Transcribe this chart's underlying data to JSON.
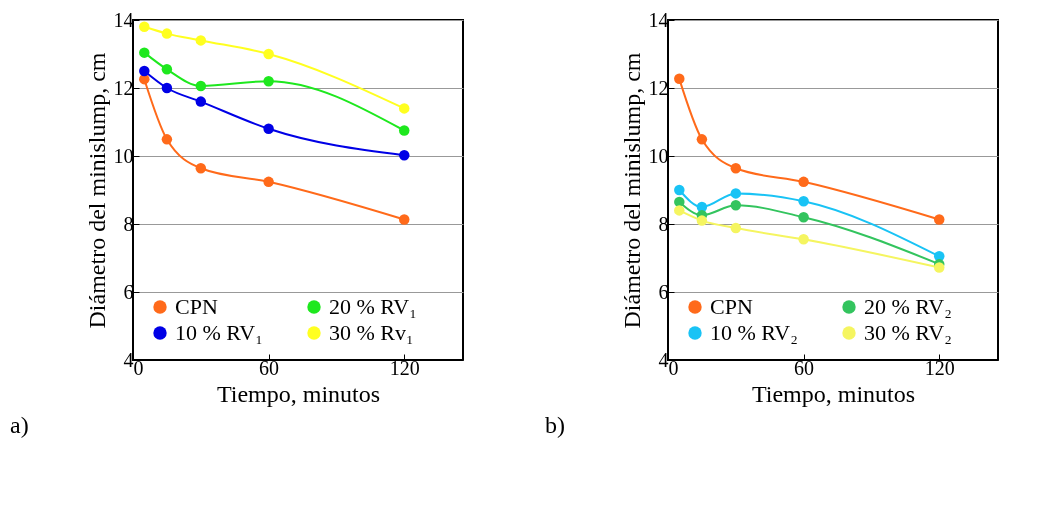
{
  "chart_data": [
    {
      "type": "line",
      "xlabel": "Tiempo, minutos",
      "ylabel": "Diámetro del minislump, cm",
      "x": [
        5,
        15,
        30,
        60,
        120
      ],
      "xlim": [
        0,
        146
      ],
      "xticks": [
        0,
        60,
        120
      ],
      "ylim": [
        4,
        14
      ],
      "yticks": [
        4,
        6,
        8,
        10,
        12,
        14
      ],
      "grid": "y",
      "legend": "bottom left",
      "marker": "circle",
      "annotations": [
        "a)"
      ],
      "series": [
        {
          "name": "CPN",
          "color": "#ff6a1a",
          "values": [
            12.26,
            10.49,
            9.64,
            9.24,
            8.13
          ]
        },
        {
          "name": "10 % RV₁",
          "color": "#0000e6",
          "values": [
            12.5,
            12.0,
            11.6,
            10.8,
            10.02
          ]
        },
        {
          "name": "20 % RV₁",
          "color": "#1ee81e",
          "values": [
            13.04,
            12.55,
            12.06,
            12.2,
            10.75
          ]
        },
        {
          "name": "30 % Rv₁",
          "color": "#ffff20",
          "values": [
            13.8,
            13.6,
            13.4,
            13.0,
            11.4
          ]
        }
      ]
    },
    {
      "type": "line",
      "xlabel": "Tiempo, minutos",
      "ylabel": "Diámetro del minislump, cm",
      "x": [
        5,
        15,
        30,
        60,
        120
      ],
      "xlim": [
        0,
        146
      ],
      "xticks": [
        0,
        60,
        120
      ],
      "ylim": [
        4,
        14
      ],
      "yticks": [
        4,
        6,
        8,
        10,
        12,
        14
      ],
      "grid": "y",
      "legend": "bottom left",
      "marker": "circle",
      "annotations": [
        "b)"
      ],
      "series": [
        {
          "name": "CPN",
          "color": "#ff6a1a",
          "values": [
            12.27,
            10.49,
            9.64,
            9.24,
            8.13
          ]
        },
        {
          "name": "10 % RV₂",
          "color": "#19c3f5",
          "values": [
            9.0,
            8.5,
            8.9,
            8.67,
            7.05
          ]
        },
        {
          "name": "20 % RV₂",
          "color": "#33c45e",
          "values": [
            8.65,
            8.26,
            8.55,
            8.2,
            6.82
          ]
        },
        {
          "name": "30 % RV₂",
          "color": "#f5f560",
          "values": [
            8.4,
            8.1,
            7.88,
            7.55,
            6.72
          ]
        }
      ]
    }
  ]
}
